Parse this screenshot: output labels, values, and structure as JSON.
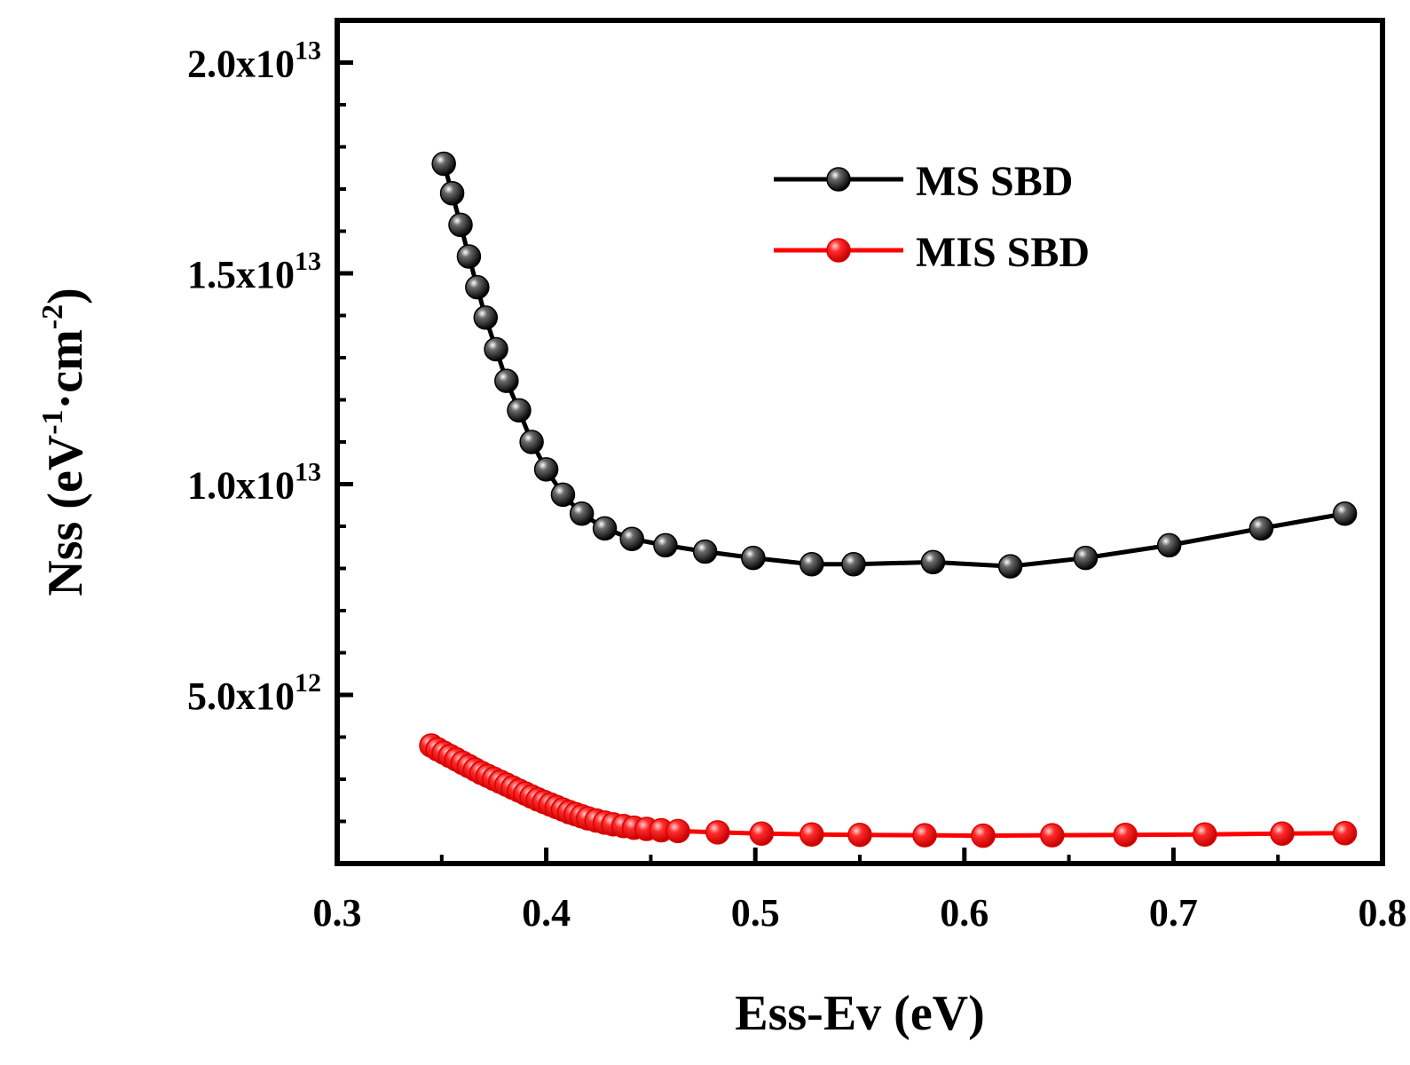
{
  "chart_data": {
    "type": "line",
    "title": "",
    "xlabel": "Ess-Ev (eV)",
    "ylabel": {
      "base": "Nss (eV",
      "exp1": "-1",
      "mid": "·cm",
      "exp2": "-2",
      "end": ")"
    },
    "xlim": [
      0.3,
      0.8
    ],
    "ylim": [
      1000000000000.0,
      21000000000000.0
    ],
    "x_ticks": [
      0.3,
      0.4,
      0.5,
      0.6,
      0.7,
      0.8
    ],
    "x_tick_labels": [
      "0.3",
      "0.4",
      "0.5",
      "0.6",
      "0.7",
      "0.8"
    ],
    "y_ticks": [
      5000000000000.0,
      10000000000000.0,
      15000000000000.0,
      20000000000000.0
    ],
    "y_tick_labels": [
      {
        "mantissa": "5.0x10",
        "exp": "12"
      },
      {
        "mantissa": "1.0x10",
        "exp": "13"
      },
      {
        "mantissa": "1.5x10",
        "exp": "13"
      },
      {
        "mantissa": "2.0x10",
        "exp": "13"
      }
    ],
    "y_minor_step": 1000000000000.0,
    "grid": false,
    "legend_position": "top-right",
    "series": [
      {
        "name": "MS SBD",
        "color": "#000000",
        "marker": "sphere",
        "x": [
          0.351,
          0.355,
          0.359,
          0.363,
          0.367,
          0.371,
          0.376,
          0.381,
          0.387,
          0.393,
          0.4,
          0.408,
          0.417,
          0.428,
          0.441,
          0.457,
          0.476,
          0.499,
          0.527,
          0.547,
          0.585,
          0.622,
          0.658,
          0.698,
          0.742,
          0.782
        ],
        "y": [
          17600000000000.0,
          16900000000000.0,
          16150000000000.0,
          15400000000000.0,
          14670000000000.0,
          13950000000000.0,
          13200000000000.0,
          12450000000000.0,
          11750000000000.0,
          11000000000000.0,
          10350000000000.0,
          9750000000000.0,
          9300000000000.0,
          8950000000000.0,
          8700000000000.0,
          8550000000000.0,
          8400000000000.0,
          8250000000000.0,
          8100000000000.0,
          8100000000000.0,
          8150000000000.0,
          8050000000000.0,
          8250000000000.0,
          8550000000000.0,
          8950000000000.0,
          9300000000000.0
        ]
      },
      {
        "name": "MIS SBD",
        "color": "#ff0000",
        "marker": "sphere",
        "x": [
          0.345,
          0.348,
          0.351,
          0.354,
          0.357,
          0.36,
          0.363,
          0.366,
          0.369,
          0.372,
          0.375,
          0.378,
          0.381,
          0.384,
          0.387,
          0.39,
          0.393,
          0.396,
          0.399,
          0.402,
          0.405,
          0.408,
          0.411,
          0.414,
          0.417,
          0.42,
          0.424,
          0.428,
          0.432,
          0.437,
          0.442,
          0.448,
          0.455,
          0.463,
          0.482,
          0.503,
          0.527,
          0.55,
          0.581,
          0.609,
          0.642,
          0.677,
          0.715,
          0.752,
          0.782
        ],
        "y": [
          3800000000000.0,
          3710000000000.0,
          3630000000000.0,
          3550000000000.0,
          3470000000000.0,
          3390000000000.0,
          3310000000000.0,
          3230000000000.0,
          3150000000000.0,
          3080000000000.0,
          3010000000000.0,
          2940000000000.0,
          2870000000000.0,
          2800000000000.0,
          2730000000000.0,
          2660000000000.0,
          2590000000000.0,
          2520000000000.0,
          2460000000000.0,
          2400000000000.0,
          2340000000000.0,
          2280000000000.0,
          2220000000000.0,
          2170000000000.0,
          2120000000000.0,
          2070000000000.0,
          2020000000000.0,
          1970000000000.0,
          1930000000000.0,
          1890000000000.0,
          1850000000000.0,
          1820000000000.0,
          1790000000000.0,
          1770000000000.0,
          1740000000000.0,
          1710000000000.0,
          1690000000000.0,
          1680000000000.0,
          1670000000000.0,
          1660000000000.0,
          1670000000000.0,
          1680000000000.0,
          1690000000000.0,
          1710000000000.0,
          1720000000000.0
        ]
      }
    ]
  }
}
